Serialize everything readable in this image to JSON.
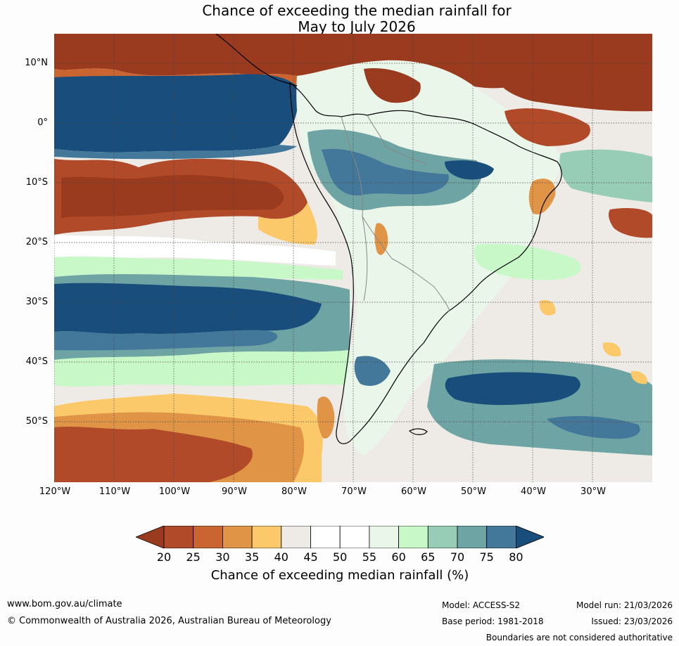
{
  "title": {
    "line1": "Chance of exceeding the median rainfall for",
    "line2": "May to July 2026"
  },
  "lat_labels": [
    "10°N",
    "0°",
    "10°S",
    "20°S",
    "30°S",
    "40°S",
    "50°S"
  ],
  "lon_labels": [
    "120°W",
    "110°W",
    "100°W",
    "90°W",
    "80°W",
    "70°W",
    "60°W",
    "50°W",
    "40°W",
    "30°W"
  ],
  "colorbar": {
    "ticks": [
      "20",
      "25",
      "30",
      "35",
      "40",
      "45",
      "50",
      "55",
      "60",
      "65",
      "70",
      "75",
      "80"
    ],
    "colors": [
      "#9a3a1f",
      "#b14a28",
      "#ca6532",
      "#e09446",
      "#fcc96a",
      "#eeebe6",
      "#ffffff",
      "#ffffff",
      "#e9f6e9",
      "#c8f8c8",
      "#97cdb6",
      "#6ea4a3",
      "#44789b",
      "#184d7c"
    ],
    "label": "Chance of exceeding median rainfall (%)"
  },
  "footer": {
    "url": "www.bom.gov.au/climate",
    "copyright": "© Commonwealth of Australia 2026, Australian Bureau of Meteorology",
    "model": "Model: ACCESS-S2",
    "base_period": "Base period: 1981-2018",
    "model_run": "Model run: 21/03/2026",
    "issued": "Issued: 23/03/2026",
    "disclaimer": "Boundaries are not considered authoritative"
  }
}
